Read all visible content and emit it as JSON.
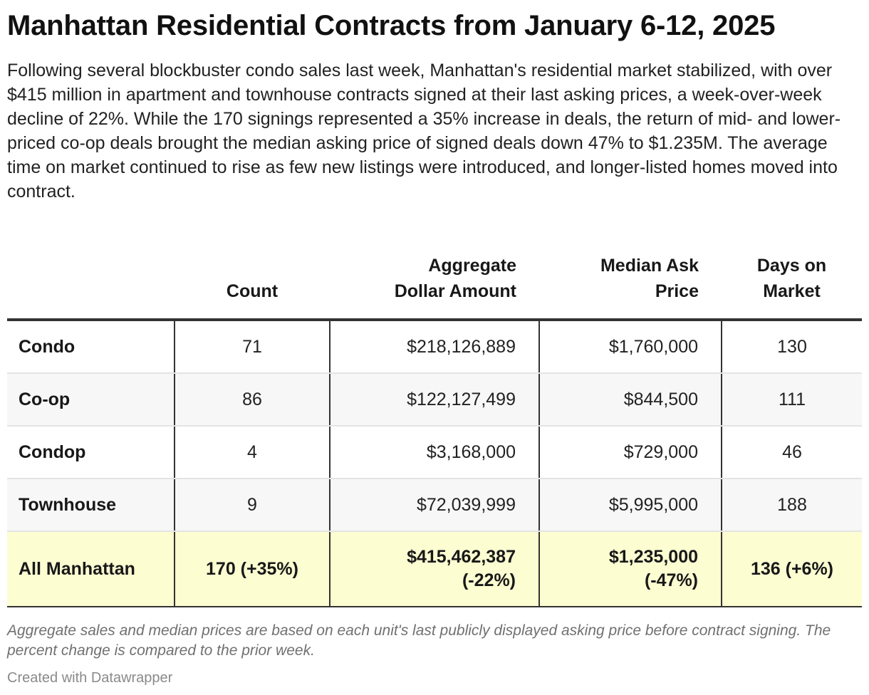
{
  "title": "Manhattan Residential Contracts from January 6-12, 2025",
  "intro": "Following several blockbuster condo sales last week, Manhattan's residential market stabilized, with over $415 million in apartment and townhouse contracts signed at their last asking prices, a week-over-week decline of 22%. While the 170 signings represented a 35% increase in deals, the return of mid- and lower-priced co-op deals brought the median asking price of signed deals down 47% to $1.235M. The average time on market continued to rise as few new listings were introduced, and longer-listed homes moved into contract.",
  "table": {
    "headers": {
      "type": "",
      "count": "Count",
      "aggregate_line1": "Aggregate",
      "aggregate_line2": "Dollar Amount",
      "median_line1": "Median Ask",
      "median_line2": "Price",
      "days_line1": "Days on",
      "days_line2": "Market"
    },
    "rows": [
      {
        "type": "Condo",
        "count": "71",
        "aggregate": "$218,126,889",
        "median": "$1,760,000",
        "days": "130"
      },
      {
        "type": "Co-op",
        "count": "86",
        "aggregate": "$122,127,499",
        "median": "$844,500",
        "days": "111"
      },
      {
        "type": "Condop",
        "count": "4",
        "aggregate": "$3,168,000",
        "median": "$729,000",
        "days": "46"
      },
      {
        "type": "Townhouse",
        "count": "9",
        "aggregate": "$72,039,999",
        "median": "$5,995,000",
        "days": "188"
      }
    ],
    "total": {
      "type": "All Manhattan",
      "count": "170 (+35%)",
      "aggregate_line1": "$415,462,387",
      "aggregate_line2": "(-22%)",
      "median_line1": "$1,235,000",
      "median_line2": "(-47%)",
      "days": "136 (+6%)"
    }
  },
  "chart_data": {
    "type": "table",
    "title": "Manhattan Residential Contracts from January 6-12, 2025",
    "columns": [
      "",
      "Count",
      "Aggregate Dollar Amount",
      "Median Ask Price",
      "Days on Market"
    ],
    "rows": [
      [
        "Condo",
        71,
        218126889,
        1760000,
        130
      ],
      [
        "Co-op",
        86,
        122127499,
        844500,
        111
      ],
      [
        "Condop",
        4,
        3168000,
        729000,
        46
      ],
      [
        "Townhouse",
        9,
        72039999,
        5995000,
        188
      ],
      [
        "All Manhattan",
        170,
        415462387,
        1235000,
        136
      ]
    ],
    "total_change_pct": {
      "count": 35,
      "aggregate": -22,
      "median": -47,
      "days": 6
    },
    "highlight_color": "#fdfdd2"
  },
  "notes": "Aggregate sales and median prices are based on each unit's last publicly displayed asking price before contract signing. The percent change is compared to the prior week.",
  "credit": "Created with Datawrapper"
}
